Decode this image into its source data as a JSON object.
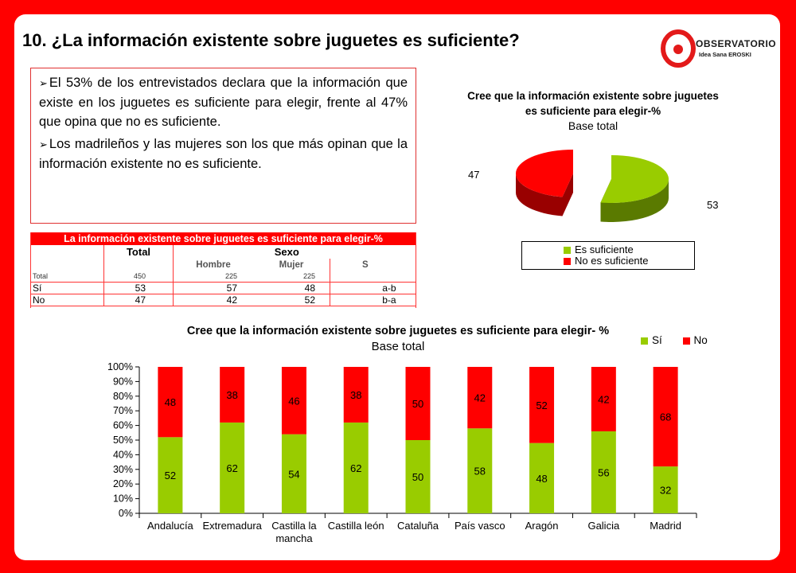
{
  "title": "10. ¿La información existente sobre juguetes es suficiente?",
  "logo": {
    "main": "OBSERVATORIO",
    "sub": "Idea Sana EROSKI"
  },
  "bullets": [
    "El 53% de los entrevistados declara que la información que existe en los juguetes es suficiente para elegir, frente al 47% que opina que no es suficiente.",
    "Los madrileños y las mujeres son los que más opinan que la información existente no es suficiente."
  ],
  "colors": {
    "si": "#99cc00",
    "no": "#ff0000",
    "si_dark": "#5a7a00",
    "no_dark": "#990000"
  },
  "table": {
    "title": "La información existente sobre juguetes es suficiente para elegir-%",
    "header_total": "Total",
    "header_sexo": "Sexo",
    "col_hombre": "Hombre",
    "col_mujer": "Mujer",
    "col_s": "S",
    "rows": [
      {
        "label": "Total",
        "total": "450",
        "hombre": "225",
        "mujer": "225",
        "s": ""
      },
      {
        "label": "Sí",
        "total": "53",
        "hombre": "57",
        "mujer": "48",
        "s": "a-b"
      },
      {
        "label": "No",
        "total": "47",
        "hombre": "42",
        "mujer": "52",
        "s": "b-a"
      }
    ]
  },
  "chart_data": [
    {
      "type": "pie",
      "title": "Cree que la información existente sobre juguetes es suficiente para elegir-%",
      "subtitle": "Base total",
      "labels": [
        "Es suficiente",
        "No es suficiente"
      ],
      "values": [
        53,
        47
      ],
      "legend": "bottom"
    },
    {
      "type": "bar",
      "stacked": true,
      "title": "Cree que la información existente sobre juguetes es suficiente para elegir- %",
      "subtitle": "Base total",
      "categories": [
        "Andalucía",
        "Extremadura",
        "Castilla la mancha",
        "Castilla león",
        "Cataluña",
        "País vasco",
        "Aragón",
        "Galicia",
        "Madrid"
      ],
      "series": [
        {
          "name": "Sí",
          "values": [
            52,
            62,
            54,
            62,
            50,
            58,
            48,
            56,
            32
          ]
        },
        {
          "name": "No",
          "values": [
            48,
            38,
            46,
            38,
            50,
            42,
            52,
            42,
            68
          ]
        }
      ],
      "ylim": [
        0,
        100
      ],
      "yticks": [
        "0%",
        "10%",
        "20%",
        "30%",
        "40%",
        "50%",
        "60%",
        "70%",
        "80%",
        "90%",
        "100%"
      ],
      "legend": "top-right"
    }
  ]
}
